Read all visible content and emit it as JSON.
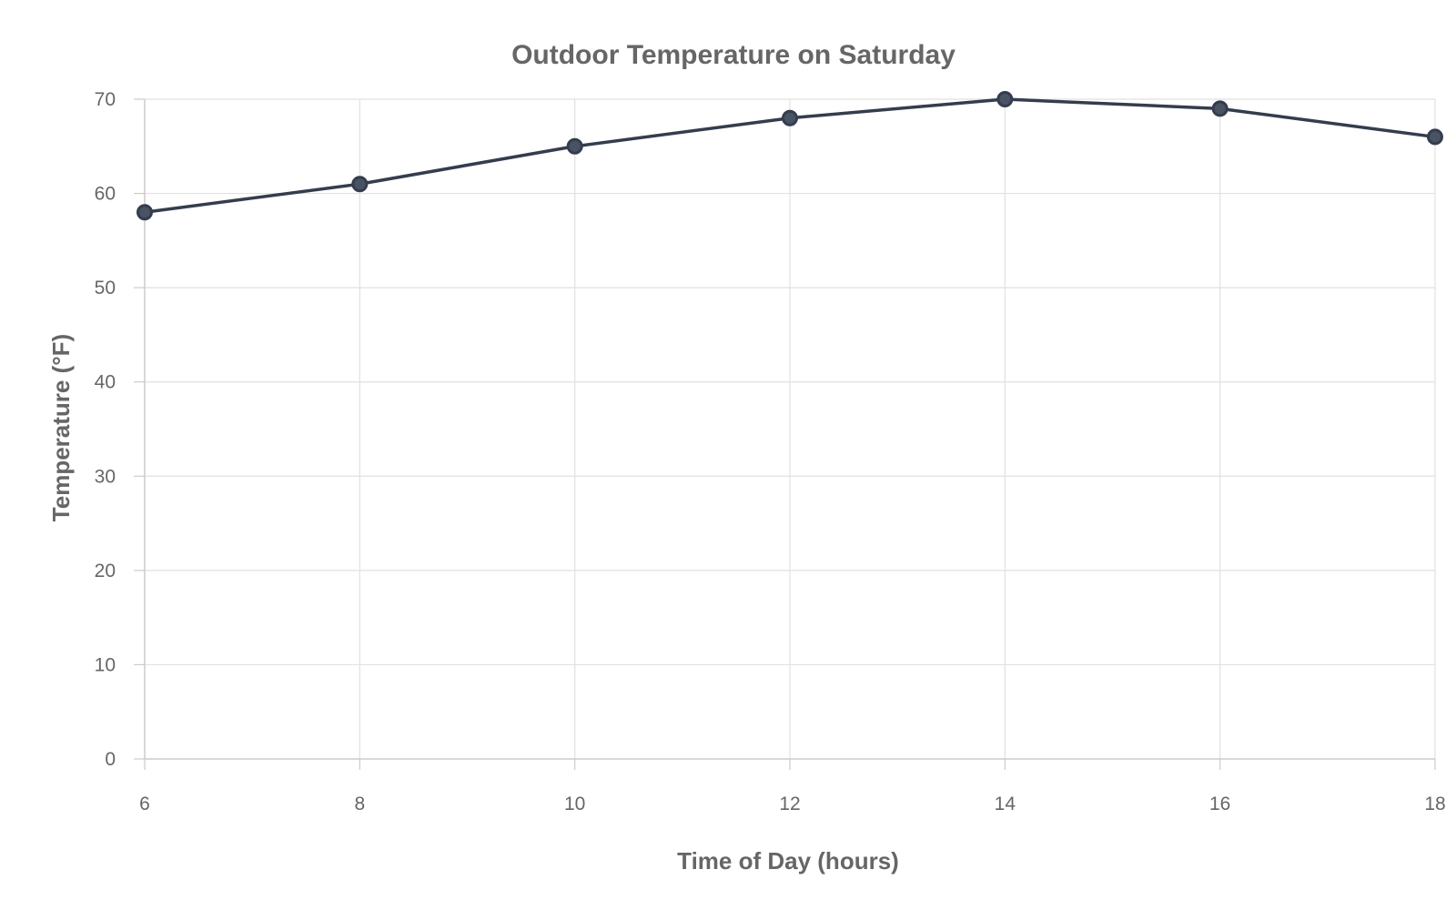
{
  "chart_data": {
    "type": "line",
    "title": "Outdoor Temperature on Saturday",
    "xlabel": "Time of Day (hours)",
    "ylabel": "Temperature (°F)",
    "xlim": [
      6,
      18
    ],
    "ylim": [
      0,
      70
    ],
    "x_ticks": [
      6,
      8,
      10,
      12,
      14,
      16,
      18
    ],
    "y_ticks": [
      0,
      10,
      20,
      30,
      40,
      50,
      60,
      70
    ],
    "grid": true,
    "legend": "none",
    "series": [
      {
        "color": "#343d4e",
        "points": [
          {
            "x": 6,
            "y": 58
          },
          {
            "x": 8,
            "y": 61
          },
          {
            "x": 10,
            "y": 65
          },
          {
            "x": 12,
            "y": 68
          },
          {
            "x": 14,
            "y": 70
          },
          {
            "x": 16,
            "y": 69
          },
          {
            "x": 18,
            "y": 66
          }
        ]
      }
    ]
  }
}
